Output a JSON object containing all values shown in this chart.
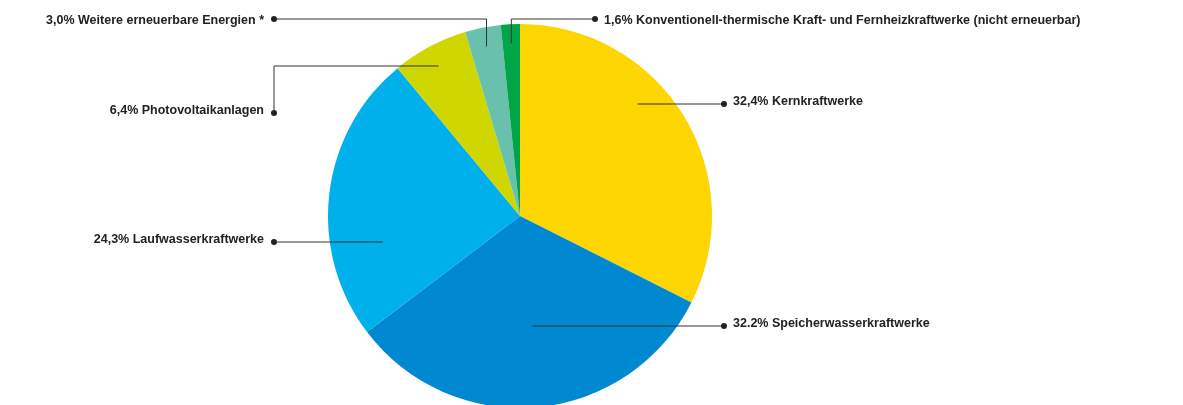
{
  "chart_data": {
    "type": "pie",
    "categories": [
      "Kernkraftwerke",
      "Speicherwasserkraftwerke",
      "Laufwasserkraftwerke",
      "Photovoltaikanlagen",
      "Weitere erneuerbare Energien *",
      "Konventionell-thermische Kraft- und Fernheizkraftwerke (nicht erneuerbar)"
    ],
    "values": [
      32.4,
      32.2,
      24.3,
      6.4,
      3.0,
      1.6
    ],
    "value_labels": [
      "32,4%",
      "32.2%",
      "24,3%",
      "6,4%",
      "3,0%",
      "1,6%"
    ],
    "colors": [
      "#fdd500",
      "#0088d1",
      "#00b0ea",
      "#cfd600",
      "#69c1ad",
      "#00a548"
    ]
  }
}
